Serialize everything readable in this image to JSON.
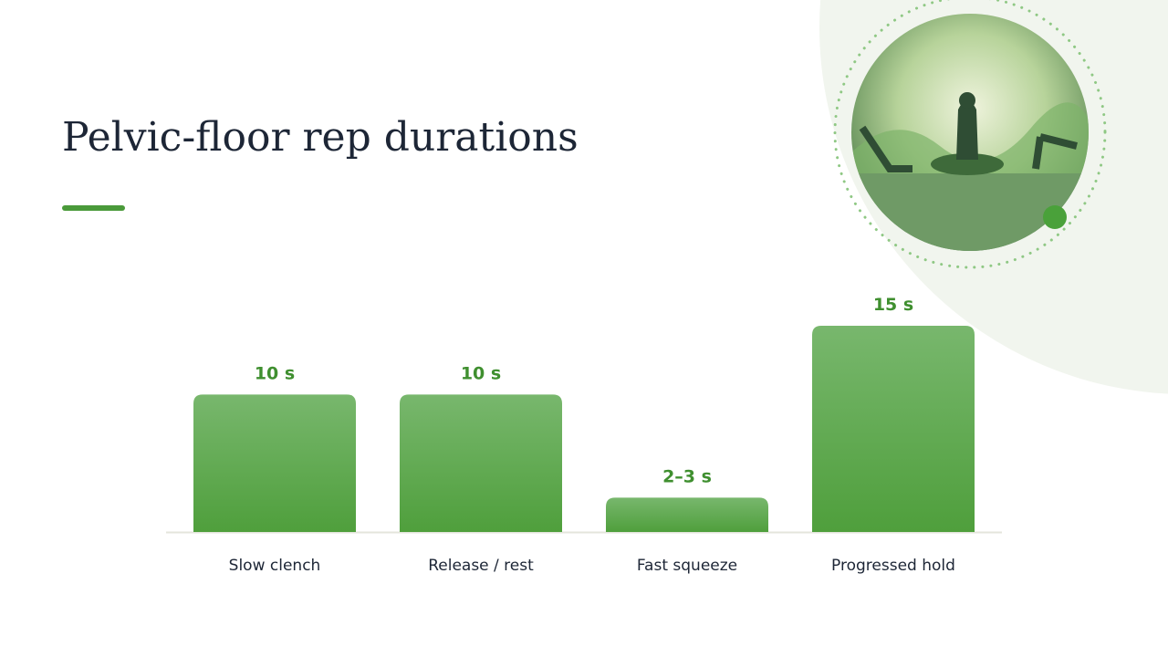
{
  "chart_data": {
    "type": "bar",
    "title": "Pelvic-floor rep durations",
    "categories": [
      "Slow clench",
      "Release / rest",
      "Fast squeeze",
      "Progressed hold"
    ],
    "values": [
      10,
      10,
      2.5,
      15
    ],
    "value_labels": [
      "10 s",
      "10 s",
      "2–3 s",
      "15 s"
    ],
    "color": "#56a545",
    "ylim": [
      0,
      15
    ]
  }
}
